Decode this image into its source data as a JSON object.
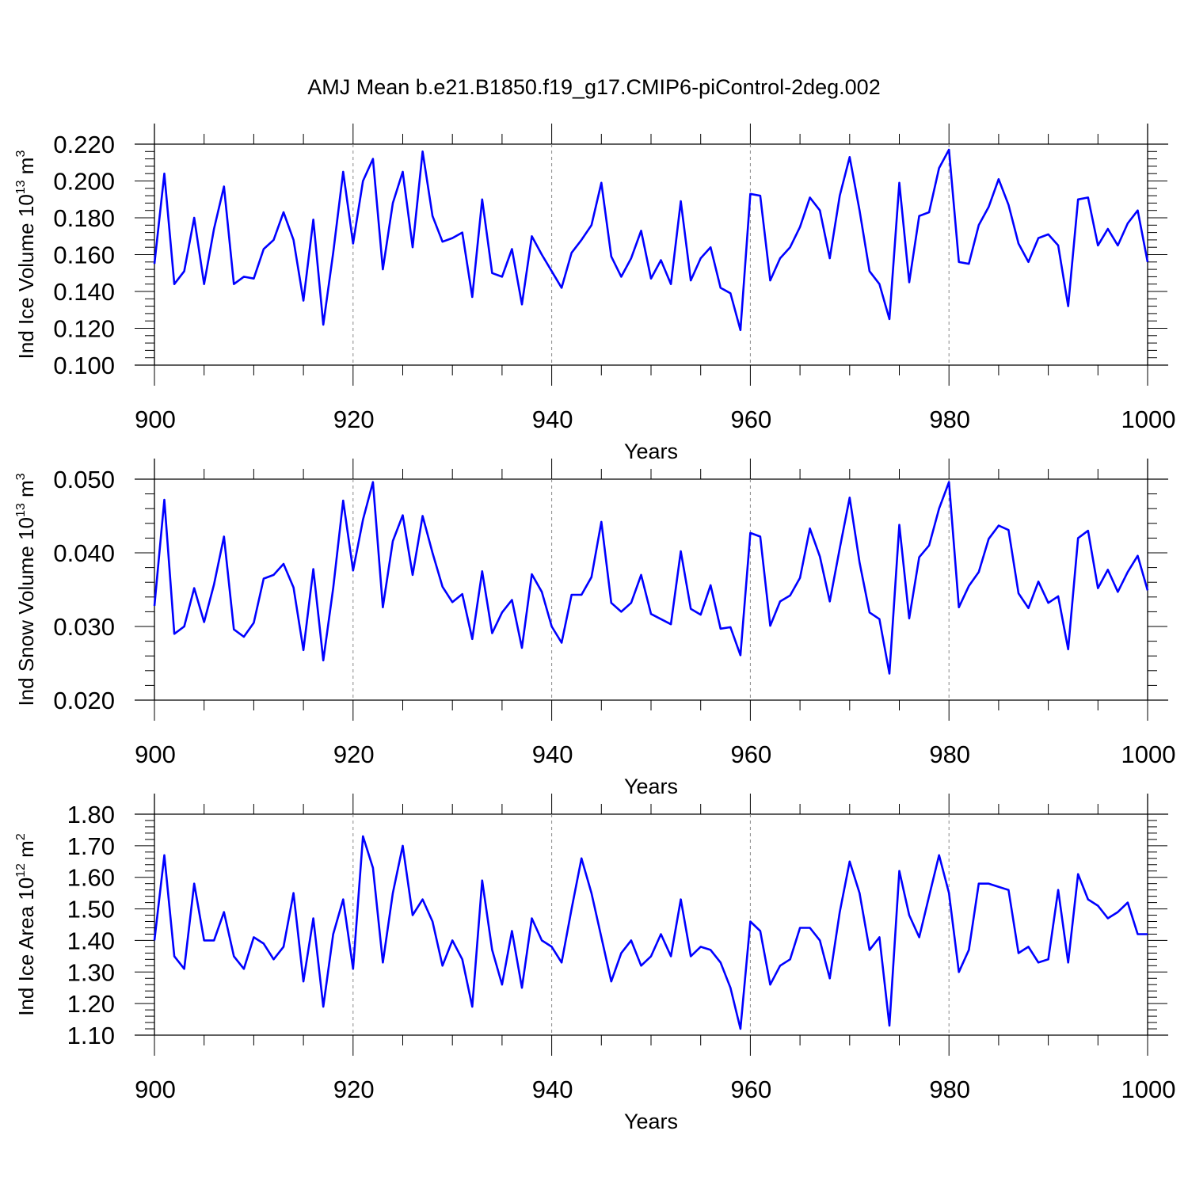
{
  "title": "AMJ Mean b.e21.B1850.f19_g17.CMIP6-piControl-2deg.002",
  "line_color": "#0000ff",
  "chart_data": [
    {
      "type": "line",
      "ylabel": {
        "text": "Ind Ice Volume 10",
        "sup": "13",
        "unit": " m",
        "unit_sup": "3"
      },
      "xlabel": "Years",
      "xlim": [
        900,
        1000
      ],
      "ylim": [
        0.1,
        0.22
      ],
      "xticks": [
        900,
        920,
        940,
        960,
        980,
        1000
      ],
      "yticks": [
        0.1,
        0.12,
        0.14,
        0.16,
        0.18,
        0.2,
        0.22
      ],
      "ytick_labels": [
        "0.100",
        "0.120",
        "0.140",
        "0.160",
        "0.180",
        "0.200",
        "0.220"
      ],
      "grid": "vertical dashed at 920, 940, 960, 980",
      "series": [
        {
          "x_start": 900,
          "values": [
            0.155,
            0.204,
            0.144,
            0.151,
            0.18,
            0.144,
            0.174,
            0.197,
            0.144,
            0.148,
            0.147,
            0.163,
            0.168,
            0.183,
            0.168,
            0.135,
            0.179,
            0.122,
            0.161,
            0.205,
            0.166,
            0.2,
            0.212,
            0.152,
            0.188,
            0.205,
            0.164,
            0.216,
            0.181,
            0.167,
            0.169,
            0.172,
            0.137,
            0.19,
            0.15,
            0.148,
            0.163,
            0.133,
            0.17,
            0.16,
            0.151,
            0.142,
            0.161,
            0.168,
            0.176,
            0.199,
            0.159,
            0.148,
            0.158,
            0.173,
            0.147,
            0.157,
            0.144,
            0.189,
            0.146,
            0.158,
            0.164,
            0.142,
            0.139,
            0.119,
            0.193,
            0.192,
            0.146,
            0.158,
            0.164,
            0.175,
            0.191,
            0.184,
            0.158,
            0.192,
            0.213,
            0.184,
            0.151,
            0.144,
            0.125,
            0.199,
            0.145,
            0.181,
            0.183,
            0.207,
            0.217,
            0.156,
            0.155,
            0.176,
            0.186,
            0.201,
            0.187,
            0.166,
            0.156,
            0.169,
            0.171,
            0.165,
            0.132,
            0.19,
            0.191,
            0.165,
            0.174,
            0.165,
            0.177,
            0.184,
            0.156
          ]
        }
      ]
    },
    {
      "type": "line",
      "ylabel": {
        "text": "Ind Snow Volume 10",
        "sup": "13",
        "unit": " m",
        "unit_sup": "3"
      },
      "xlabel": "Years",
      "xlim": [
        900,
        1000
      ],
      "ylim": [
        0.02,
        0.05
      ],
      "xticks": [
        900,
        920,
        940,
        960,
        980,
        1000
      ],
      "yticks": [
        0.02,
        0.03,
        0.04,
        0.05
      ],
      "ytick_labels": [
        "0.020",
        "0.030",
        "0.040",
        "0.050"
      ],
      "grid": "vertical dashed at 920, 940, 960, 980",
      "series": [
        {
          "x_start": 900,
          "values": [
            0.0328,
            0.0472,
            0.029,
            0.03,
            0.0352,
            0.0306,
            0.0357,
            0.0422,
            0.0296,
            0.0286,
            0.0305,
            0.0365,
            0.037,
            0.0385,
            0.0353,
            0.0268,
            0.0378,
            0.0254,
            0.0352,
            0.0471,
            0.0376,
            0.0445,
            0.0496,
            0.0326,
            0.0416,
            0.0451,
            0.037,
            0.045,
            0.04,
            0.0354,
            0.0333,
            0.0344,
            0.0283,
            0.0375,
            0.0291,
            0.0319,
            0.0336,
            0.0271,
            0.0371,
            0.0347,
            0.03,
            0.0278,
            0.0343,
            0.0343,
            0.0367,
            0.0442,
            0.0332,
            0.032,
            0.0332,
            0.037,
            0.0317,
            0.031,
            0.0303,
            0.0402,
            0.0324,
            0.0316,
            0.0356,
            0.0297,
            0.0299,
            0.0261,
            0.0427,
            0.0422,
            0.0301,
            0.0334,
            0.0342,
            0.0366,
            0.0433,
            0.0395,
            0.0334,
            0.0406,
            0.0475,
            0.0387,
            0.0319,
            0.031,
            0.0236,
            0.0438,
            0.0311,
            0.0394,
            0.041,
            0.046,
            0.0496,
            0.0326,
            0.0355,
            0.0374,
            0.0419,
            0.0437,
            0.0431,
            0.0345,
            0.0325,
            0.0361,
            0.0332,
            0.0341,
            0.0269,
            0.042,
            0.043,
            0.0352,
            0.0377,
            0.0347,
            0.0374,
            0.0396,
            0.0349
          ]
        }
      ]
    },
    {
      "type": "line",
      "ylabel": {
        "text": "Ind Ice Area 10",
        "sup": "12",
        "unit": " m",
        "unit_sup": "2"
      },
      "xlabel": "Years",
      "xlim": [
        900,
        1000
      ],
      "ylim": [
        1.1,
        1.8
      ],
      "xticks": [
        900,
        920,
        940,
        960,
        980,
        1000
      ],
      "yticks": [
        1.1,
        1.2,
        1.3,
        1.4,
        1.5,
        1.6,
        1.7,
        1.8
      ],
      "ytick_labels": [
        "1.10",
        "1.20",
        "1.30",
        "1.40",
        "1.50",
        "1.60",
        "1.70",
        "1.80"
      ],
      "grid": "vertical dashed at 920, 940, 960, 980",
      "series": [
        {
          "x_start": 900,
          "values": [
            1.4,
            1.67,
            1.35,
            1.31,
            1.58,
            1.4,
            1.4,
            1.49,
            1.35,
            1.31,
            1.41,
            1.39,
            1.34,
            1.38,
            1.55,
            1.27,
            1.47,
            1.19,
            1.42,
            1.53,
            1.31,
            1.73,
            1.63,
            1.33,
            1.55,
            1.7,
            1.48,
            1.53,
            1.46,
            1.32,
            1.4,
            1.34,
            1.19,
            1.59,
            1.37,
            1.26,
            1.43,
            1.25,
            1.47,
            1.4,
            1.38,
            1.33,
            1.5,
            1.66,
            1.55,
            1.41,
            1.27,
            1.36,
            1.4,
            1.32,
            1.35,
            1.42,
            1.35,
            1.53,
            1.35,
            1.38,
            1.37,
            1.33,
            1.25,
            1.12,
            1.46,
            1.43,
            1.26,
            1.32,
            1.34,
            1.44,
            1.44,
            1.4,
            1.28,
            1.49,
            1.65,
            1.55,
            1.37,
            1.41,
            1.13,
            1.62,
            1.48,
            1.41,
            1.54,
            1.67,
            1.55,
            1.3,
            1.37,
            1.58,
            1.58,
            1.57,
            1.56,
            1.36,
            1.38,
            1.33,
            1.34,
            1.56,
            1.33,
            1.61,
            1.53,
            1.51,
            1.47,
            1.49,
            1.52,
            1.42,
            1.42
          ]
        }
      ]
    }
  ]
}
